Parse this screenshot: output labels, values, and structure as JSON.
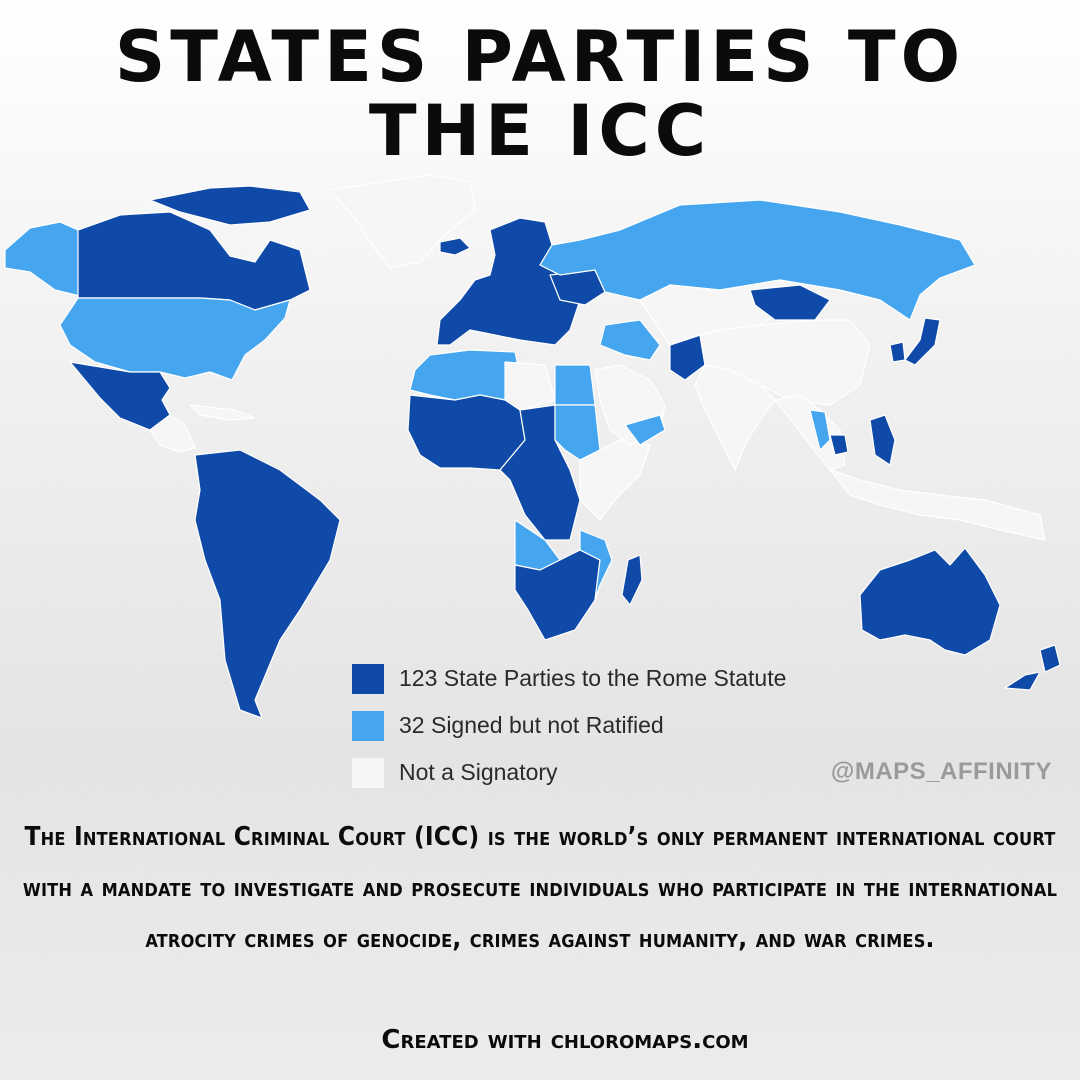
{
  "title": "STATES PARTIES TO THE ICC",
  "colors": {
    "state_party": "#0f4aa8",
    "signed": "#45a6ef",
    "not_signatory": "#f6f6f6",
    "ocean": "transparent",
    "border": "#ffffff"
  },
  "legend": [
    {
      "key": "state_party",
      "label": "123 State Parties to the Rome Statute",
      "color": "#0f4aa8"
    },
    {
      "key": "signed",
      "label": "32 Signed but not Ratified",
      "color": "#45a6ef"
    },
    {
      "key": "not_signatory",
      "label": "Not a Signatory",
      "color": "#f6f6f6"
    }
  ],
  "map": {
    "regions": [
      {
        "name": "greenland",
        "status": "not_signatory"
      },
      {
        "name": "alaska",
        "status": "signed"
      },
      {
        "name": "canada",
        "status": "state_party"
      },
      {
        "name": "canadian-arctic",
        "status": "state_party"
      },
      {
        "name": "united-states",
        "status": "signed"
      },
      {
        "name": "mexico",
        "status": "state_party"
      },
      {
        "name": "central-america-caribbean",
        "status": "not_signatory"
      },
      {
        "name": "south-america",
        "status": "state_party"
      },
      {
        "name": "iceland",
        "status": "state_party"
      },
      {
        "name": "europe",
        "status": "state_party"
      },
      {
        "name": "ukraine",
        "status": "state_party"
      },
      {
        "name": "russia",
        "status": "signed"
      },
      {
        "name": "north-africa",
        "status": "signed"
      },
      {
        "name": "libya",
        "status": "not_signatory"
      },
      {
        "name": "egypt",
        "status": "signed"
      },
      {
        "name": "west-africa",
        "status": "state_party"
      },
      {
        "name": "central-africa",
        "status": "state_party"
      },
      {
        "name": "sudan",
        "status": "signed"
      },
      {
        "name": "horn-of-africa",
        "status": "not_signatory"
      },
      {
        "name": "angola",
        "status": "signed"
      },
      {
        "name": "southern-africa",
        "status": "state_party"
      },
      {
        "name": "mozambique",
        "status": "signed"
      },
      {
        "name": "madagascar",
        "status": "state_party"
      },
      {
        "name": "arabian-peninsula",
        "status": "not_signatory"
      },
      {
        "name": "middle-east-signed",
        "status": "signed"
      },
      {
        "name": "afghanistan",
        "status": "state_party"
      },
      {
        "name": "central-asia",
        "status": "not_signatory"
      },
      {
        "name": "mongolia",
        "status": "state_party"
      },
      {
        "name": "china",
        "status": "not_signatory"
      },
      {
        "name": "india",
        "status": "not_signatory"
      },
      {
        "name": "southeast-asia",
        "status": "not_signatory"
      },
      {
        "name": "thailand",
        "status": "signed"
      },
      {
        "name": "cambodia",
        "status": "state_party"
      },
      {
        "name": "philippines",
        "status": "state_party"
      },
      {
        "name": "japan",
        "status": "state_party"
      },
      {
        "name": "korea",
        "status": "state_party"
      },
      {
        "name": "indonesia",
        "status": "not_signatory"
      },
      {
        "name": "australia",
        "status": "state_party"
      },
      {
        "name": "new-zealand",
        "status": "state_party"
      }
    ]
  },
  "watermark": "@MAPS_AFFINITY",
  "description": "The International Criminal Court (ICC) is the world’s only permanent international court with a mandate to investigate and prosecute individuals who participate in the international atrocity crimes of genocide, crimes against humanity, and war crimes.",
  "credit": "Created with chloromaps.com"
}
